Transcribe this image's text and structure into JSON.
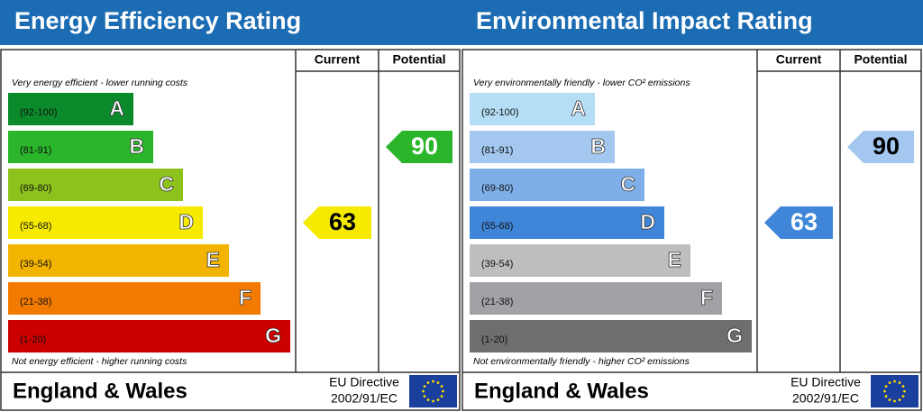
{
  "panels": [
    {
      "title": "Energy Efficiency Rating",
      "column_headers": [
        "Current",
        "Potential"
      ],
      "top_note": "Very energy efficient - lower running costs",
      "bottom_note": "Not energy efficient - higher running costs",
      "bands": [
        {
          "range": "(92-100)",
          "letter": "A",
          "color": "#0b8a2c",
          "arrow_text_color": "#ffffff"
        },
        {
          "range": "(81-91)",
          "letter": "B",
          "color": "#2bb52b",
          "arrow_text_color": "#ffffff"
        },
        {
          "range": "(69-80)",
          "letter": "C",
          "color": "#8dc21c",
          "arrow_text_color": "#ffffff"
        },
        {
          "range": "(55-68)",
          "letter": "D",
          "color": "#f6ea00",
          "arrow_text_color": "#000000"
        },
        {
          "range": "(39-54)",
          "letter": "E",
          "color": "#f2b400",
          "arrow_text_color": "#000000"
        },
        {
          "range": "(21-38)",
          "letter": "F",
          "color": "#f27a00",
          "arrow_text_color": "#ffffff"
        },
        {
          "range": "(1-20)",
          "letter": "G",
          "color": "#cc0000",
          "arrow_text_color": "#ffffff"
        }
      ],
      "current": 63,
      "potential": 90,
      "footer": "England & Wales",
      "directive": [
        "EU Directive",
        "2002/91/EC"
      ]
    },
    {
      "title": "Environmental Impact Rating",
      "column_headers": [
        "Current",
        "Potential"
      ],
      "top_note": "Very environmentally friendly - lower CO² emissions",
      "bottom_note": "Not environmentally friendly - higher CO² emissions",
      "bands": [
        {
          "range": "(92-100)",
          "letter": "A",
          "color": "#b5def6",
          "arrow_text_color": "#000000"
        },
        {
          "range": "(81-91)",
          "letter": "B",
          "color": "#a3c7ef",
          "arrow_text_color": "#000000"
        },
        {
          "range": "(69-80)",
          "letter": "C",
          "color": "#7eafe8",
          "arrow_text_color": "#000000"
        },
        {
          "range": "(55-68)",
          "letter": "D",
          "color": "#3f86d9",
          "arrow_text_color": "#ffffff"
        },
        {
          "range": "(39-54)",
          "letter": "E",
          "color": "#bebebe",
          "arrow_text_color": "#000000"
        },
        {
          "range": "(21-38)",
          "letter": "F",
          "color": "#a3a0a6",
          "arrow_text_color": "#ffffff"
        },
        {
          "range": "(1-20)",
          "letter": "G",
          "color": "#6e6e6e",
          "arrow_text_color": "#ffffff"
        }
      ],
      "current": 63,
      "potential": 90,
      "footer": "England & Wales",
      "directive": [
        "EU Directive",
        "2002/91/EC"
      ]
    }
  ]
}
